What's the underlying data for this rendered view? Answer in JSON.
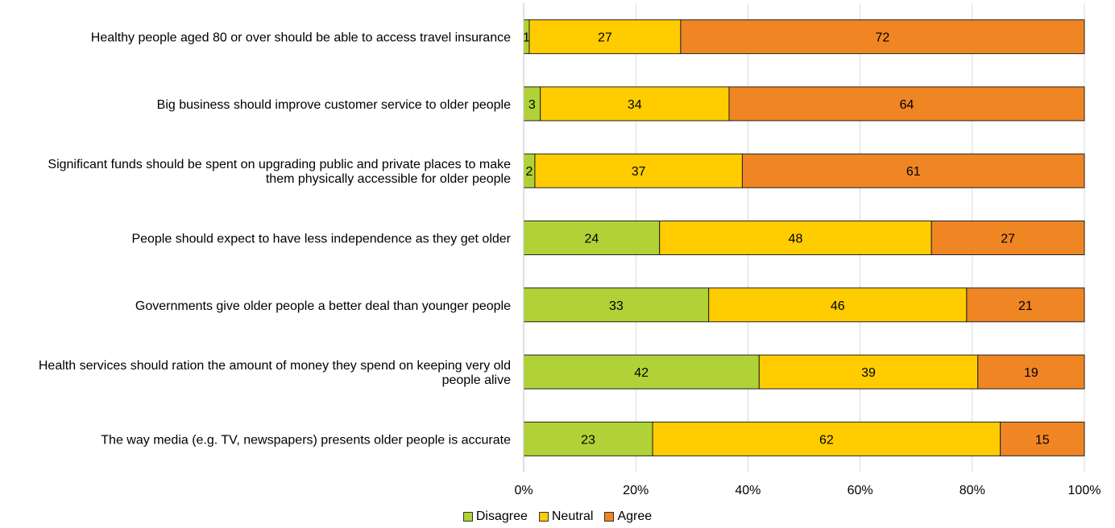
{
  "chart_data": {
    "type": "bar",
    "orientation": "horizontal",
    "stacked": true,
    "percent_stacked": true,
    "categories": [
      [
        "Healthy people aged 80 or over should be able to access travel insurance"
      ],
      [
        "Big business should improve customer service to older people"
      ],
      [
        "Significant funds should be spent on upgrading public and private places to make",
        "them physically accessible for older people"
      ],
      [
        "People should expect to have less independence as they get older"
      ],
      [
        "Governments give older people a better deal than younger people"
      ],
      [
        "Health services should ration the amount of money they spend on keeping very old",
        "people alive"
      ],
      [
        "The way media (e.g. TV, newspapers) presents older people is accurate"
      ]
    ],
    "series": [
      {
        "name": "Disagree",
        "color": "#b0d236",
        "values": [
          1,
          3,
          2,
          24,
          33,
          42,
          23
        ]
      },
      {
        "name": "Neutral",
        "color": "#ffcc00",
        "values": [
          27,
          34,
          37,
          48,
          46,
          39,
          62
        ]
      },
      {
        "name": "Agree",
        "color": "#f08524",
        "values": [
          72,
          64,
          61,
          27,
          21,
          19,
          15
        ]
      }
    ],
    "xlim": [
      0,
      100
    ],
    "xticks": [
      "0%",
      "20%",
      "40%",
      "60%",
      "80%",
      "100%"
    ],
    "grid": "vertical",
    "legend_position": "bottom"
  }
}
